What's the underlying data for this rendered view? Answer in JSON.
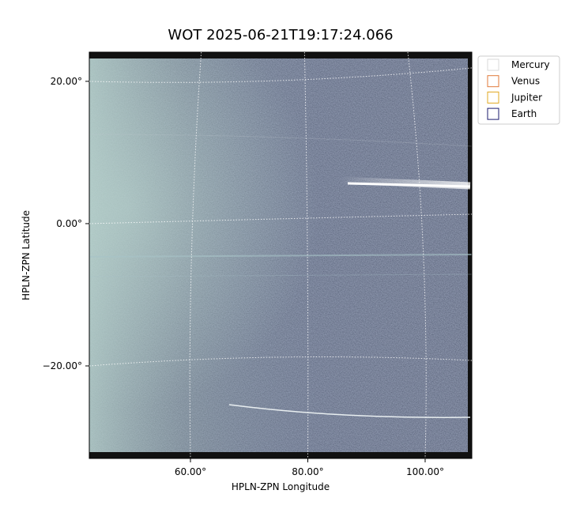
{
  "chart_data": {
    "type": "image",
    "title": "WOT 2025-06-21T19:17:24.066",
    "xlabel": "HPLN-ZPN Longitude",
    "ylabel": "HPLN-ZPN Latitude",
    "xlim": [
      42.76,
      107.95
    ],
    "ylim": [
      -33.0,
      24.1
    ],
    "xticks": [
      {
        "value": 60,
        "label": "60.00°"
      },
      {
        "value": 80,
        "label": "80.00°"
      },
      {
        "value": 100,
        "label": "100.00°"
      }
    ],
    "yticks": [
      {
        "value": 20,
        "label": "20.00°"
      },
      {
        "value": 0,
        "label": "0.00°"
      },
      {
        "value": -20,
        "label": "−20.00°"
      }
    ],
    "grid": true,
    "legend_position": "upper right outside",
    "legend": [
      {
        "name": "Mercury",
        "color": "#d9d9d9"
      },
      {
        "name": "Venus",
        "color": "#e07a3a"
      },
      {
        "name": "Jupiter",
        "color": "#e0a820"
      },
      {
        "name": "Earth",
        "color": "#1a1a6e"
      }
    ]
  }
}
